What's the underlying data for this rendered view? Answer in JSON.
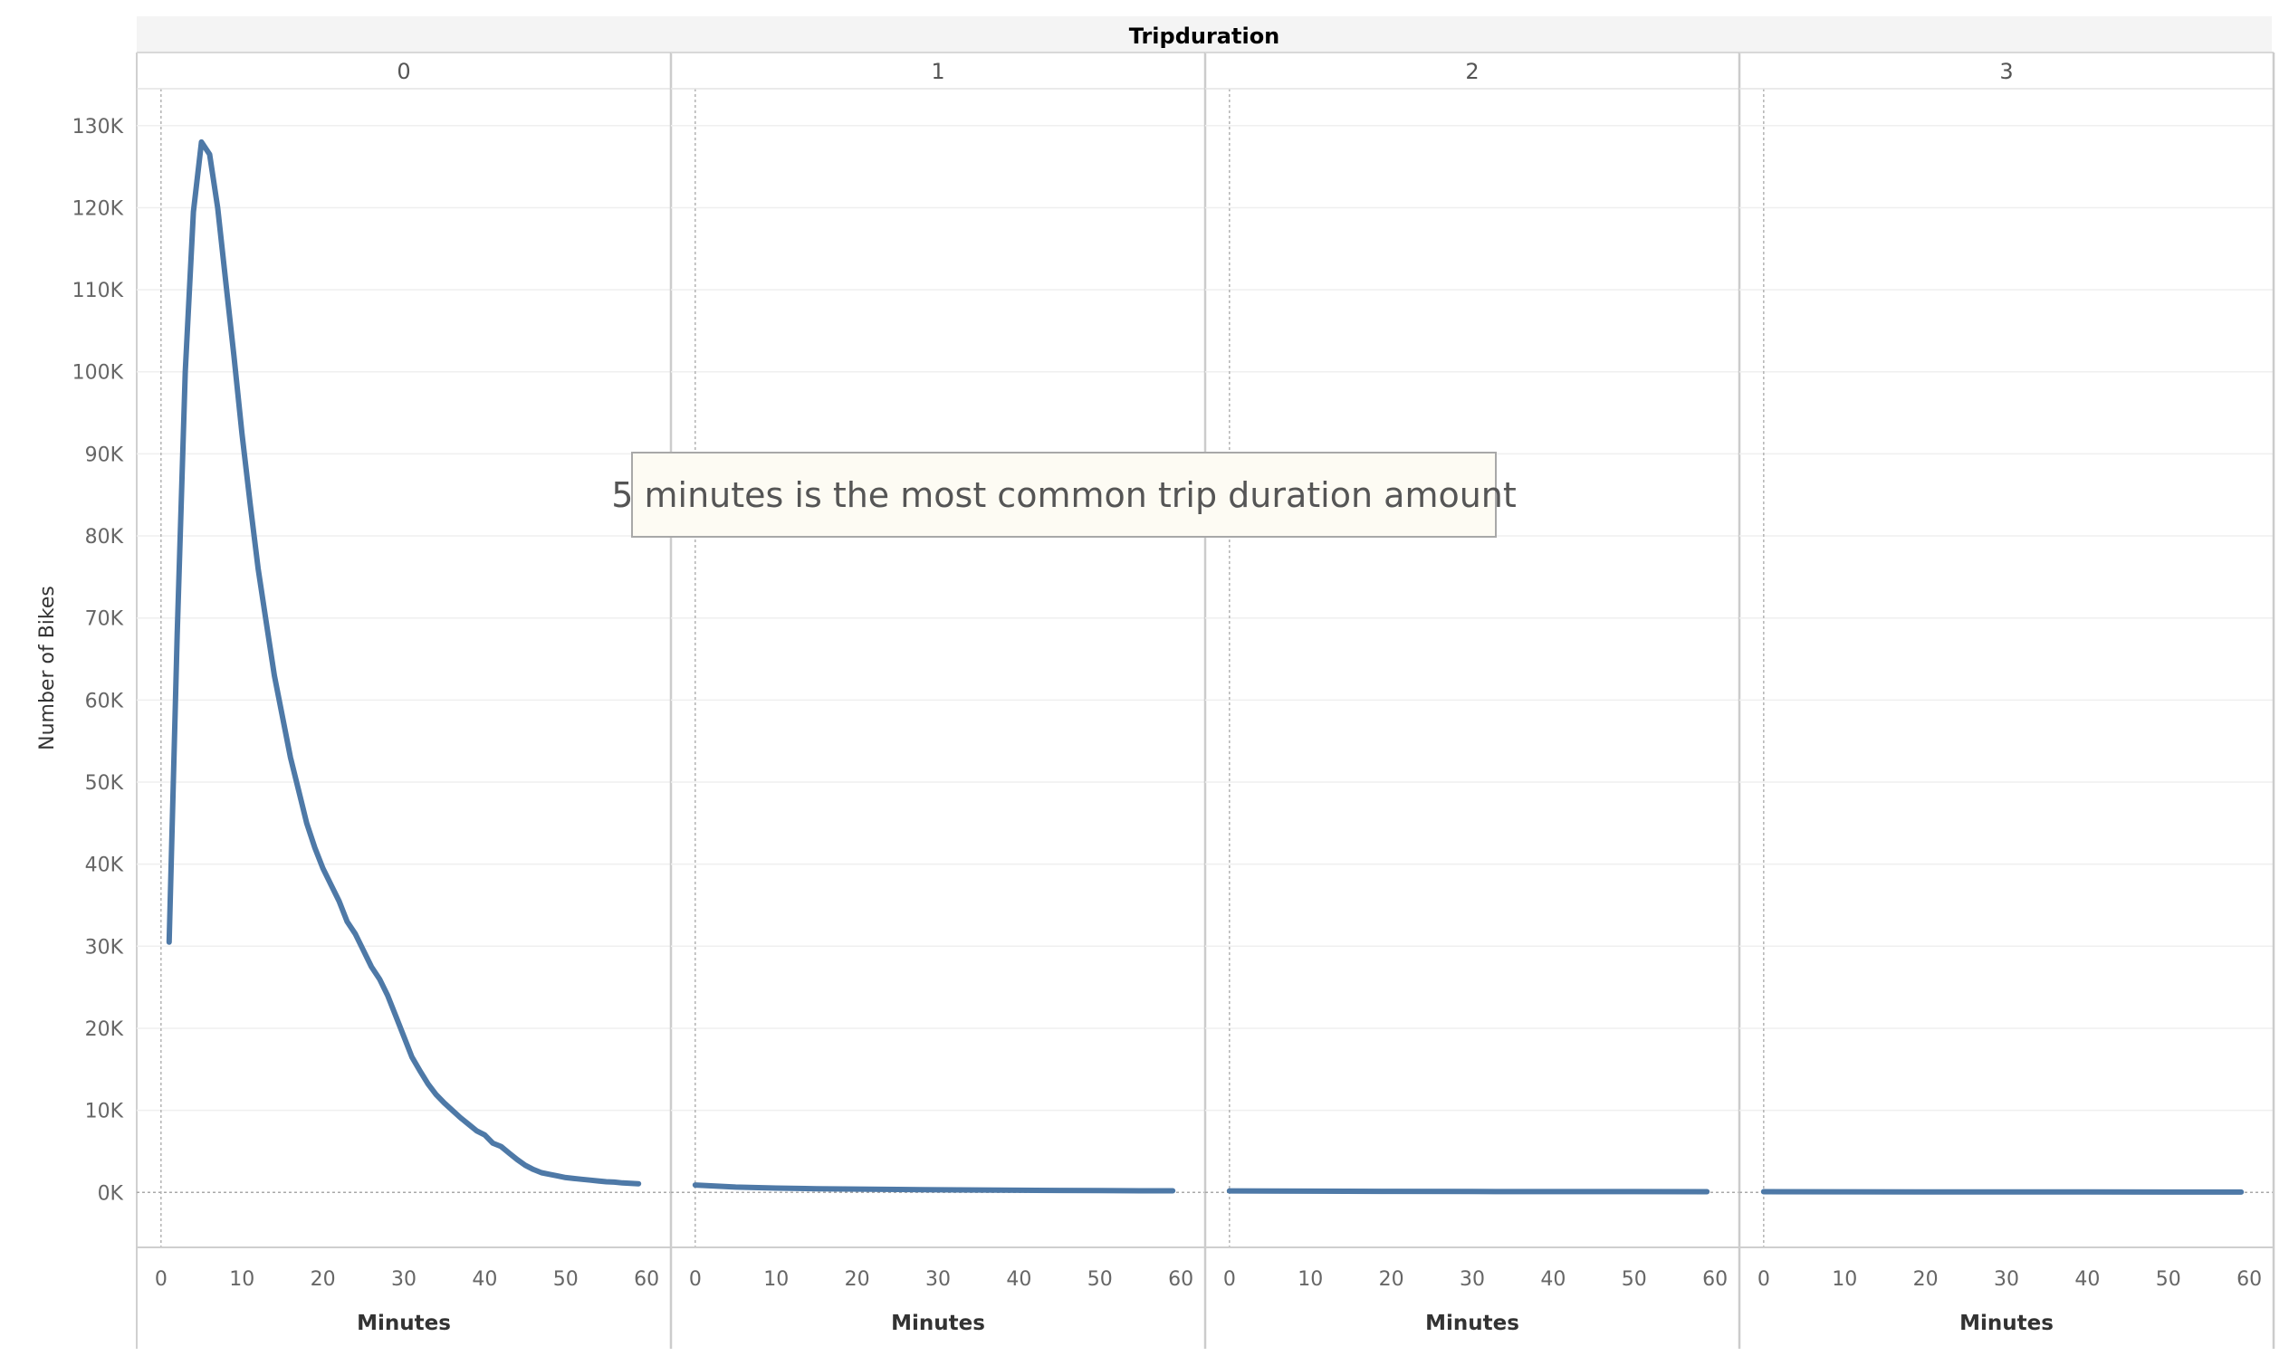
{
  "chart_data": {
    "type": "line",
    "column_header": "Tripduration",
    "panels": [
      {
        "label": "0",
        "x": [
          1,
          2,
          3,
          4,
          5,
          6,
          7,
          8,
          9,
          10,
          11,
          12,
          13,
          14,
          15,
          16,
          17,
          18,
          19,
          20,
          21,
          22,
          23,
          24,
          25,
          26,
          27,
          28,
          29,
          30,
          31,
          32,
          33,
          34,
          35,
          36,
          37,
          38,
          39,
          40,
          41,
          42,
          43,
          44,
          45,
          46,
          47,
          48,
          49,
          50,
          51,
          52,
          53,
          54,
          55,
          56,
          57,
          58,
          59
        ],
        "y": [
          30500,
          68000,
          100000,
          119500,
          128000,
          126500,
          120000,
          111000,
          102000,
          92500,
          84000,
          76000,
          69500,
          63000,
          58000,
          53000,
          49000,
          45000,
          42000,
          39500,
          37500,
          35500,
          33000,
          31500,
          29500,
          27500,
          26000,
          24000,
          21500,
          19000,
          16500,
          14800,
          13200,
          11900,
          10900,
          10000,
          9100,
          8300,
          7500,
          7000,
          6000,
          5600,
          4800,
          4000,
          3300,
          2800,
          2400,
          2200,
          2000,
          1800,
          1700,
          1600,
          1500,
          1400,
          1300,
          1250,
          1150,
          1100,
          1050
        ]
      },
      {
        "label": "1",
        "x": [
          0,
          5,
          10,
          15,
          20,
          25,
          30,
          35,
          40,
          45,
          50,
          55,
          59
        ],
        "y": [
          900,
          650,
          520,
          450,
          400,
          360,
          320,
          290,
          260,
          240,
          220,
          200,
          190
        ]
      },
      {
        "label": "2",
        "x": [
          0,
          10,
          20,
          30,
          40,
          50,
          59
        ],
        "y": [
          180,
          150,
          130,
          110,
          100,
          90,
          80
        ]
      },
      {
        "label": "3",
        "x": [
          0,
          10,
          20,
          30,
          40,
          50,
          59
        ],
        "y": [
          80,
          70,
          60,
          55,
          50,
          45,
          40
        ]
      }
    ],
    "xlabel": "Minutes",
    "ylabel": "Number of Bikes",
    "xlim": [
      -3,
      63
    ],
    "xticks": [
      0,
      10,
      20,
      30,
      40,
      50,
      60
    ],
    "ylim": [
      -6700,
      134500
    ],
    "yticks": [
      0,
      10000,
      20000,
      30000,
      40000,
      50000,
      60000,
      70000,
      80000,
      90000,
      100000,
      110000,
      120000,
      130000
    ],
    "ytick_labels": [
      "0K",
      "10K",
      "20K",
      "30K",
      "40K",
      "50K",
      "60K",
      "70K",
      "80K",
      "90K",
      "100K",
      "110K",
      "120K",
      "130K"
    ],
    "line_color": "#4e79a7",
    "annotation": "5 minutes is the most common trip duration amount",
    "grid": true
  }
}
